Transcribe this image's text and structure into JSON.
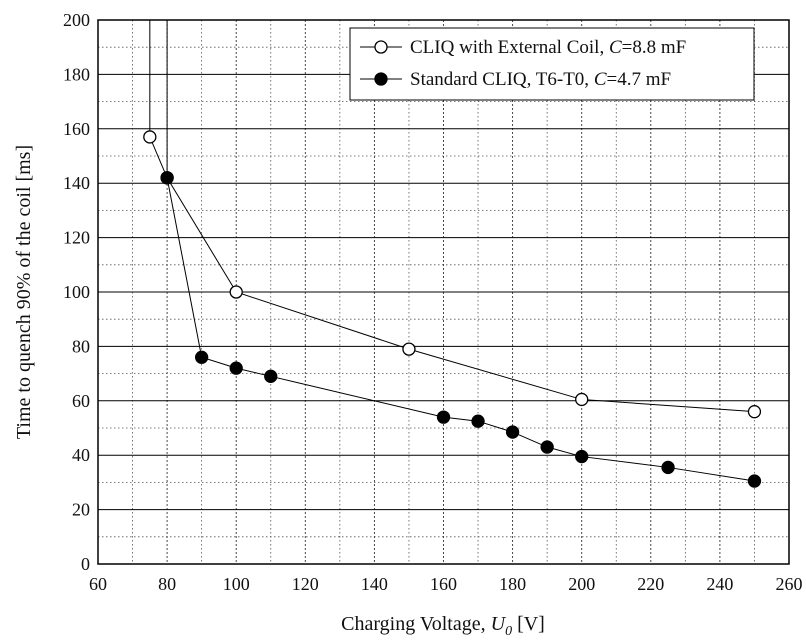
{
  "chart_data": {
    "type": "line",
    "xlabel_prefix": "Charging Voltage, ",
    "xlabel_var": "U",
    "xlabel_sub": "0",
    "xlabel_suffix": " [V]",
    "ylabel": "Time to quench 90% of the coil [ms]",
    "xlim": [
      60,
      260
    ],
    "ylim": [
      0,
      200
    ],
    "xticks": [
      60,
      80,
      100,
      120,
      140,
      160,
      180,
      200,
      220,
      240,
      260
    ],
    "yticks": [
      0,
      20,
      40,
      60,
      80,
      100,
      120,
      140,
      160,
      180,
      200
    ],
    "grid": true,
    "legend_position": "top-right",
    "series": [
      {
        "name_prefix": "CLIQ with External Coil, ",
        "name_var": "C",
        "name_suffix": "=8.8 mF",
        "marker": "open-circle",
        "x": [
          75,
          80,
          100,
          150,
          200,
          250
        ],
        "y": [
          157,
          142,
          100,
          79,
          60.5,
          56
        ]
      },
      {
        "name_prefix": "Standard CLIQ, T6-T0, ",
        "name_var": "C",
        "name_suffix": "=4.7 mF",
        "marker": "filled-circle",
        "x": [
          80,
          90,
          100,
          110,
          160,
          170,
          180,
          190,
          200,
          225,
          250
        ],
        "y": [
          142,
          76,
          72,
          69,
          54,
          52.5,
          48.5,
          43,
          39.5,
          35.5,
          30.5
        ]
      }
    ],
    "vertical_lines": [
      {
        "x": 75,
        "y_from": 157,
        "y_to": 200
      },
      {
        "x": 80,
        "y_from": 142,
        "y_to": 200
      }
    ]
  }
}
